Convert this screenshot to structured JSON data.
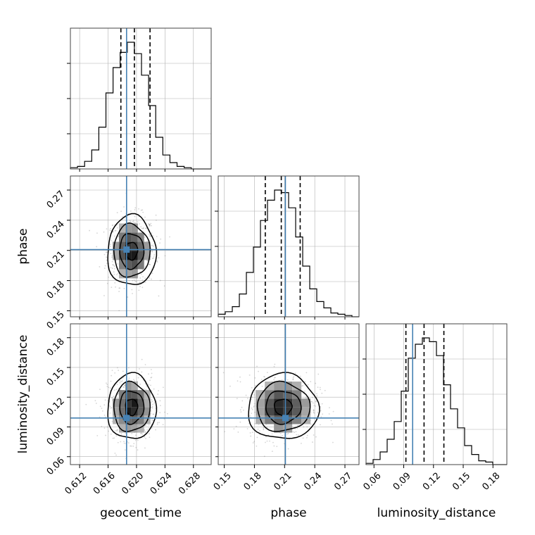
{
  "chart_data": {
    "type": "corner",
    "parameters": [
      "geocent_time",
      "phase",
      "luminosity_distance"
    ],
    "axis_labels": {
      "geocent_time": "geocent_time",
      "phase": "phase",
      "luminosity_distance": "luminosity_distance"
    },
    "ranges": {
      "geocent_time": [
        0.6107,
        0.6305
      ],
      "phase": [
        0.144,
        0.284
      ],
      "luminosity_distance": [
        0.052,
        0.194
      ]
    },
    "ticks": {
      "geocent_time": [
        {
          "value": 0.612,
          "label": "0.612"
        },
        {
          "value": 0.616,
          "label": "0.616"
        },
        {
          "value": 0.62,
          "label": "0.620"
        },
        {
          "value": 0.624,
          "label": "0.624"
        },
        {
          "value": 0.628,
          "label": "0.628"
        }
      ],
      "phase": [
        {
          "value": 0.15,
          "label": "0.15"
        },
        {
          "value": 0.18,
          "label": "0.18"
        },
        {
          "value": 0.21,
          "label": "0.21"
        },
        {
          "value": 0.24,
          "label": "0.24"
        },
        {
          "value": 0.27,
          "label": "0.27"
        }
      ],
      "luminosity_distance": [
        {
          "value": 0.06,
          "label": "0.06"
        },
        {
          "value": 0.09,
          "label": "0.09"
        },
        {
          "value": 0.12,
          "label": "0.12"
        },
        {
          "value": 0.15,
          "label": "0.15"
        },
        {
          "value": 0.18,
          "label": "0.18"
        }
      ]
    },
    "truths": {
      "geocent_time": 0.6186,
      "phase": 0.2108,
      "luminosity_distance": 0.099
    },
    "quantiles": {
      "geocent_time": [
        0.6178,
        0.6197,
        0.6219
      ],
      "phase": [
        0.1908,
        0.2067,
        0.2255
      ],
      "luminosity_distance": [
        0.0922,
        0.1105,
        0.1305
      ]
    },
    "histograms": {
      "geocent_time": {
        "edges": [
          0.6107,
          0.6117,
          0.6127,
          0.6137,
          0.6147,
          0.6157,
          0.6167,
          0.6177,
          0.6187,
          0.6197,
          0.6207,
          0.6217,
          0.6227,
          0.6237,
          0.6247,
          0.6257,
          0.6267,
          0.6277,
          0.6287,
          0.6297,
          0.6305
        ],
        "counts": [
          0.01,
          0.02,
          0.06,
          0.15,
          0.33,
          0.6,
          0.8,
          0.92,
          1.0,
          0.91,
          0.74,
          0.5,
          0.25,
          0.11,
          0.05,
          0.02,
          0.01,
          0.0,
          0.0,
          0.0
        ]
      },
      "phase": {
        "edges": [
          0.144,
          0.151,
          0.158,
          0.165,
          0.172,
          0.179,
          0.186,
          0.193,
          0.2,
          0.207,
          0.214,
          0.221,
          0.228,
          0.235,
          0.242,
          0.249,
          0.256,
          0.263,
          0.27,
          0.277,
          0.284
        ],
        "counts": [
          0.02,
          0.04,
          0.08,
          0.18,
          0.35,
          0.55,
          0.76,
          0.92,
          1.0,
          0.98,
          0.86,
          0.63,
          0.4,
          0.22,
          0.12,
          0.07,
          0.03,
          0.02,
          0.01,
          0.0
        ]
      },
      "luminosity_distance": {
        "edges": [
          0.052,
          0.0591,
          0.0662,
          0.0733,
          0.0804,
          0.0875,
          0.0946,
          0.1017,
          0.1088,
          0.1159,
          0.123,
          0.1301,
          0.1372,
          0.1443,
          0.1514,
          0.1585,
          0.1656,
          0.1727,
          0.1798,
          0.1869,
          0.194
        ],
        "counts": [
          0.01,
          0.04,
          0.1,
          0.2,
          0.34,
          0.58,
          0.84,
          0.95,
          1.0,
          0.97,
          0.86,
          0.63,
          0.44,
          0.29,
          0.15,
          0.08,
          0.03,
          0.02,
          0.0,
          0.0
        ]
      }
    },
    "densities": [
      {
        "x": "geocent_time",
        "y": "phase",
        "center": [
          0.6193,
          0.2095
        ],
        "sigma": [
          0.0017,
          0.0175
        ]
      },
      {
        "x": "geocent_time",
        "y": "luminosity_distance",
        "center": [
          0.6193,
          0.11
        ],
        "sigma": [
          0.0017,
          0.0165
        ]
      },
      {
        "x": "phase",
        "y": "luminosity_distance",
        "center": [
          0.2085,
          0.11
        ],
        "sigma": [
          0.0175,
          0.0165
        ]
      }
    ],
    "contour_levels_sigma": [
      0.5,
      1.0,
      1.5,
      2.0
    ],
    "grid": true,
    "legend": "none",
    "colors": {
      "truth": "#4682b4",
      "histogram": "#000000",
      "contour": "#000000",
      "scatter": "#888888",
      "grid": "#b0b0b0",
      "frame": "#444444"
    }
  }
}
